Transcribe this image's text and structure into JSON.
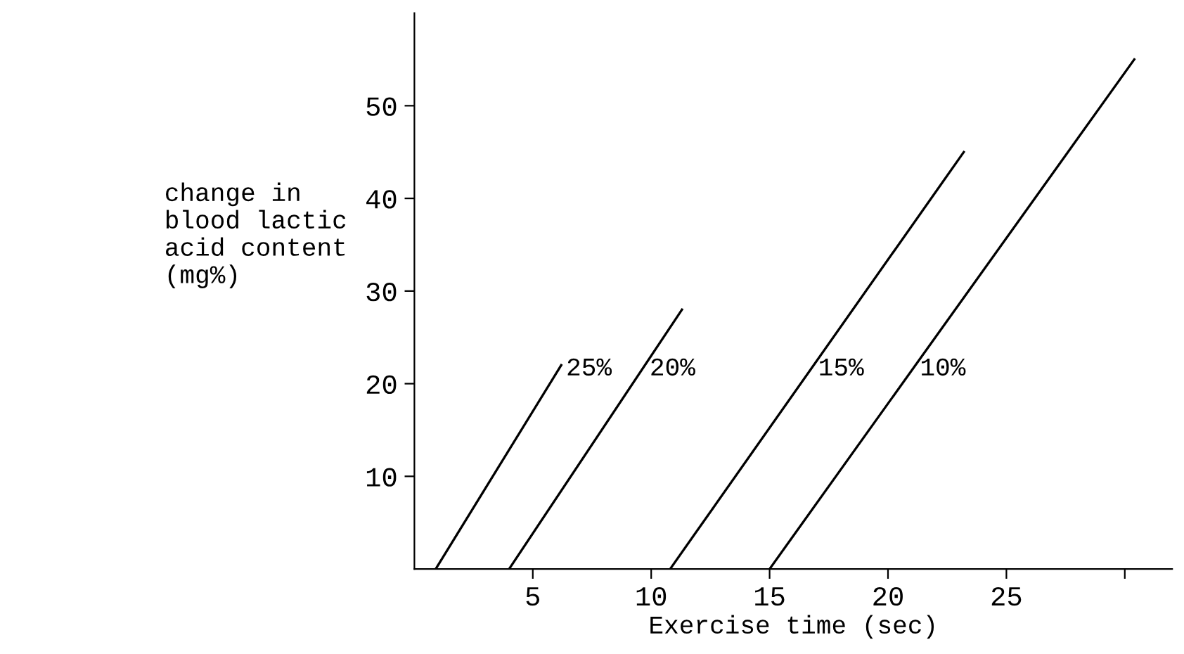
{
  "chart_data": {
    "type": "line",
    "xlabel": "Exercise time (sec)",
    "ylabel": "change in\nblood lactic\nacid content\n(mg%)",
    "series": [
      {
        "name": "25%",
        "color": "#000000",
        "x": [
          0.9,
          6.2
        ],
        "values": [
          0,
          22
        ]
      },
      {
        "name": "20%",
        "color": "#000000",
        "x": [
          4.0,
          11.3
        ],
        "values": [
          0,
          28
        ]
      },
      {
        "name": "15%",
        "color": "#000000",
        "x": [
          10.8,
          23.2
        ],
        "values": [
          0,
          45
        ]
      },
      {
        "name": "10%",
        "color": "#000000",
        "x": [
          15.0,
          30.4
        ],
        "values": [
          0,
          55
        ]
      }
    ],
    "xlim": [
      0,
      32
    ],
    "ylim": [
      0,
      60
    ],
    "xticks": [
      5,
      10,
      15,
      20,
      25,
      {
        "value": 30,
        "label": null
      }
    ],
    "yticks": [
      10,
      20,
      30,
      40,
      50
    ],
    "grid": false,
    "legend": false,
    "marker": "none",
    "line_style": "solid"
  }
}
